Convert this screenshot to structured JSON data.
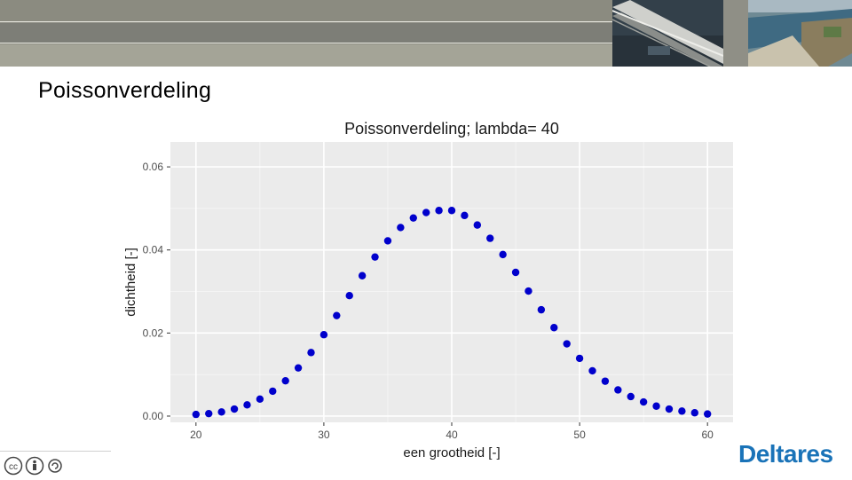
{
  "slide": {
    "title": "Poissonverdeling",
    "logo_text": "Deltares",
    "license_icon": "cc-by-sa-icon"
  },
  "colors": {
    "header": "#8f8f86",
    "panel": "#ebebeb",
    "grid": "#ffffff",
    "points": "#0000cc",
    "logo": "#1a73b8"
  },
  "chart_data": {
    "type": "scatter",
    "title": "Poissonverdeling; lambda= 40",
    "xlabel": "een grootheid [-]",
    "ylabel": "dichtheid [-]",
    "xlim": [
      18,
      62
    ],
    "ylim": [
      -0.0015,
      0.066
    ],
    "x_ticks": [
      20,
      30,
      40,
      50,
      60
    ],
    "y_ticks": [
      0.0,
      0.02,
      0.04,
      0.06
    ],
    "y_tick_labels": [
      "0.00",
      "0.02",
      "0.04",
      "0.06"
    ],
    "grid": true,
    "legend": "none",
    "x": [
      20,
      21,
      22,
      23,
      24,
      25,
      26,
      27,
      28,
      29,
      30,
      31,
      32,
      33,
      34,
      35,
      36,
      37,
      38,
      39,
      40,
      41,
      42,
      43,
      44,
      45,
      46,
      47,
      48,
      49,
      50,
      51,
      52,
      53,
      54,
      55,
      56,
      57,
      58,
      59,
      60
    ],
    "y": [
      0.0004,
      0.0006,
      0.001,
      0.0017,
      0.0027,
      0.0041,
      0.006,
      0.0085,
      0.0116,
      0.0153,
      0.0196,
      0.0242,
      0.029,
      0.0338,
      0.0383,
      0.0422,
      0.0454,
      0.0477,
      0.049,
      0.0495,
      0.0495,
      0.0483,
      0.046,
      0.0428,
      0.0389,
      0.0346,
      0.0301,
      0.0256,
      0.0213,
      0.0174,
      0.0139,
      0.0109,
      0.0084,
      0.0063,
      0.0047,
      0.0034,
      0.0024,
      0.0017,
      0.0012,
      0.0008,
      0.0005
    ]
  }
}
